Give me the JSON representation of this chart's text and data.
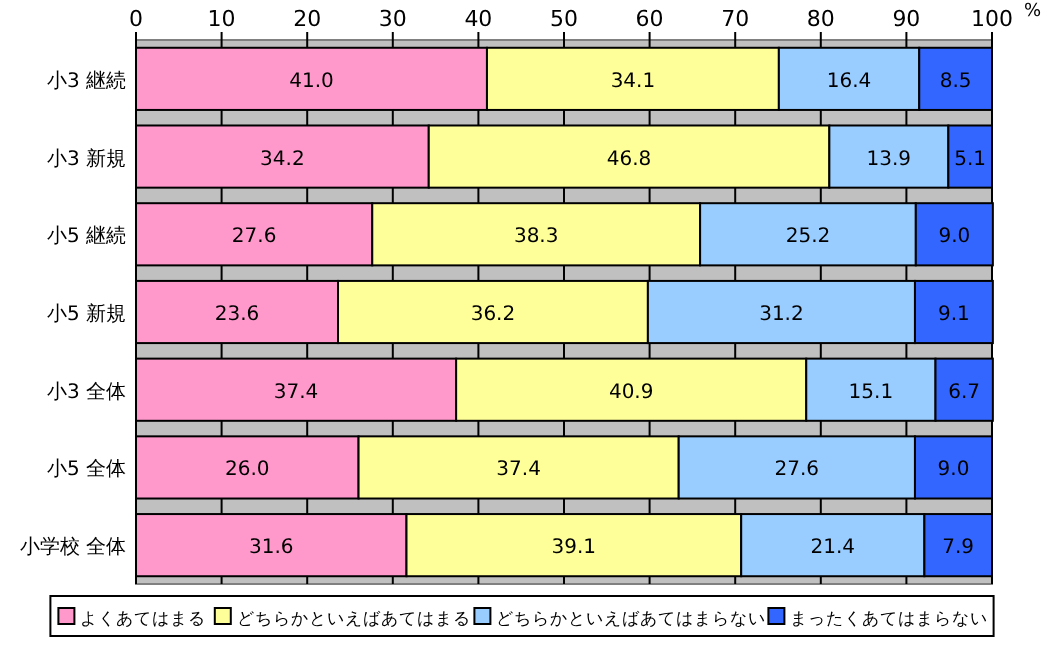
{
  "chart_data": {
    "type": "bar",
    "orientation": "horizontal",
    "stacked": true,
    "xlabel": "%",
    "xlim": [
      0,
      100
    ],
    "xticks": [
      0,
      10,
      20,
      30,
      40,
      50,
      60,
      70,
      80,
      90,
      100
    ],
    "grid": "x",
    "legend": "bottom",
    "categories": [
      "小3 継続",
      "小3 新規",
      "小5 継続",
      "小5 新規",
      "小3 全体",
      "小5 全体",
      "小学校 全体"
    ],
    "series": [
      {
        "name": "よくあてはまる",
        "color": "#ff99cc",
        "values": [
          41.0,
          34.2,
          27.6,
          23.6,
          37.4,
          26.0,
          31.6
        ],
        "value_labels": [
          "41.0",
          "34.2",
          "27.6",
          "23.6",
          "37.4",
          "26.0",
          "31.6"
        ]
      },
      {
        "name": "どちらかといえばあてはまる",
        "color": "#ffff99",
        "values": [
          34.1,
          46.8,
          38.3,
          36.2,
          40.9,
          37.4,
          39.1
        ],
        "value_labels": [
          "34.1",
          "46.8",
          "38.3",
          "36.2",
          "40.9",
          "37.4",
          "39.1"
        ]
      },
      {
        "name": "どちらかといえばあてはまらない",
        "color": "#99ccff",
        "values": [
          16.4,
          13.9,
          25.2,
          31.2,
          15.1,
          27.6,
          21.4
        ],
        "value_labels": [
          "16.4",
          "13.9",
          "25.2",
          "31.2",
          "15.1",
          "27.6",
          "21.4"
        ]
      },
      {
        "name": "まったくあてはまらない",
        "color": "#3366ff",
        "values": [
          8.5,
          5.1,
          9.0,
          9.1,
          6.7,
          9.0,
          7.9
        ],
        "value_labels": [
          "8.5",
          "5.1",
          "9.0",
          "9.1",
          "6.7",
          "9.0",
          "7.9"
        ]
      }
    ]
  }
}
